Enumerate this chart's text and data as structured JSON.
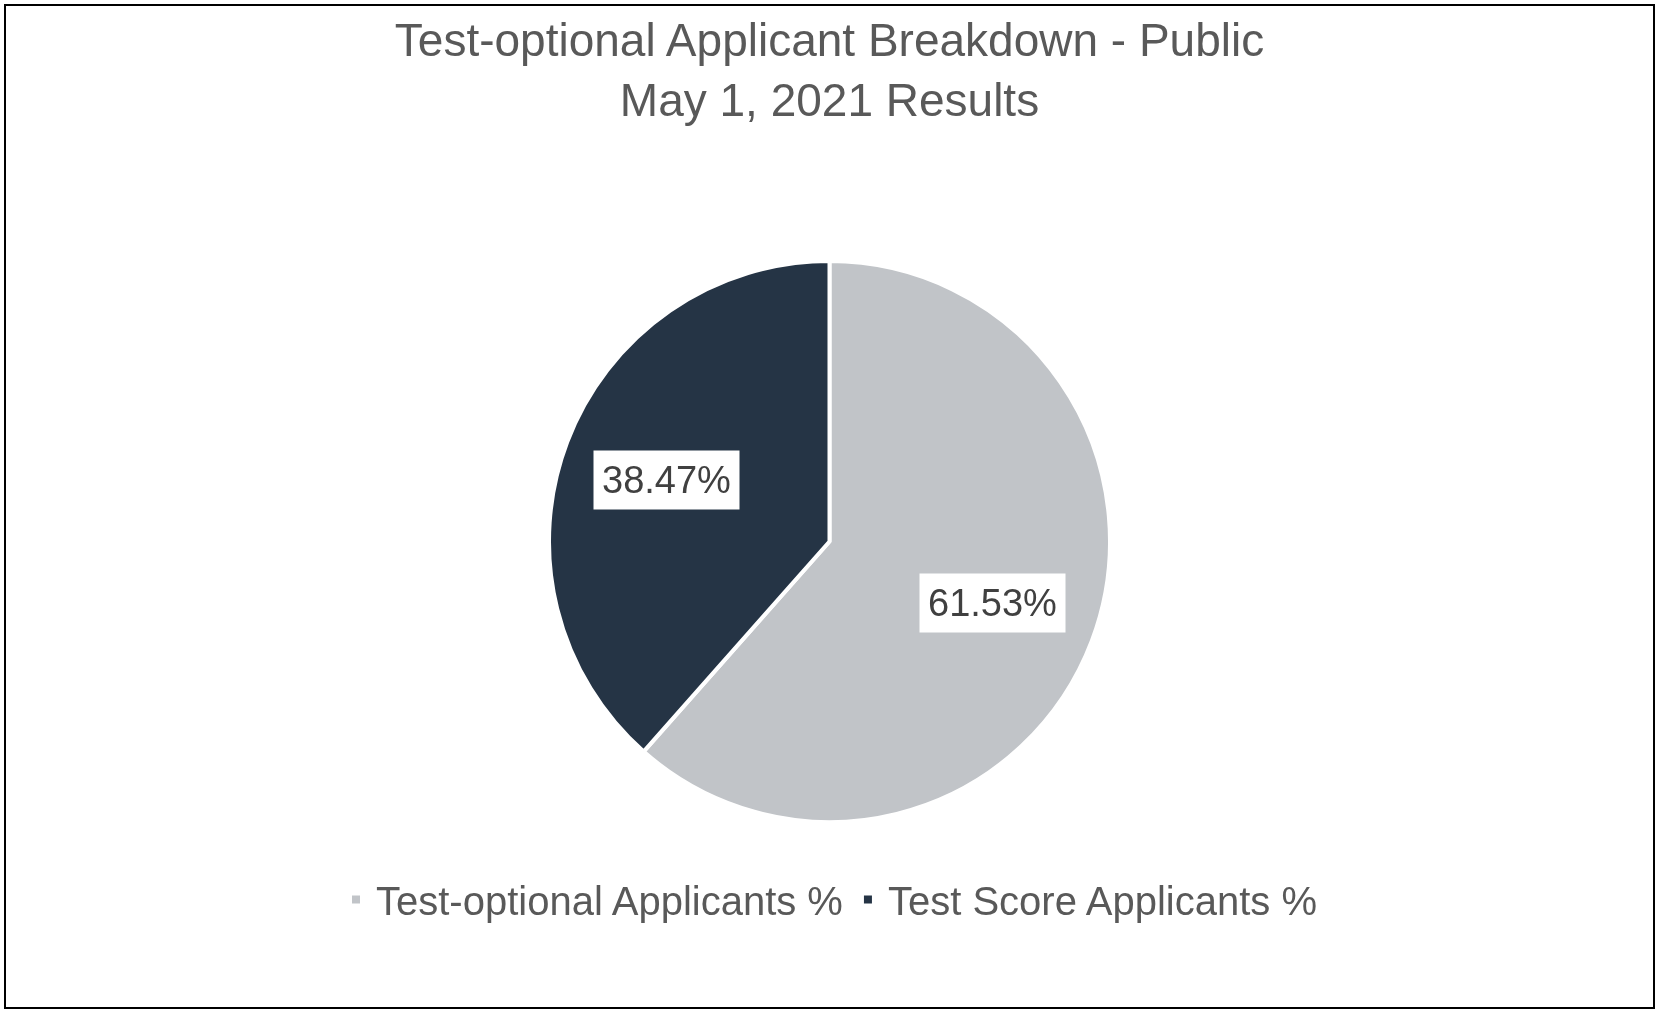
{
  "chart_data": {
    "type": "pie",
    "title": "Test-optional Applicant Breakdown - Public",
    "subtitle": "May 1, 2021 Results",
    "categories": [
      "Test-optional Applicants %",
      "Test Score Applicants %"
    ],
    "values": [
      61.53,
      38.47
    ],
    "colors": [
      "#c1c4c8",
      "#253445"
    ],
    "value_labels": [
      "61.53%",
      "38.47%"
    ],
    "legend": "bottom"
  }
}
